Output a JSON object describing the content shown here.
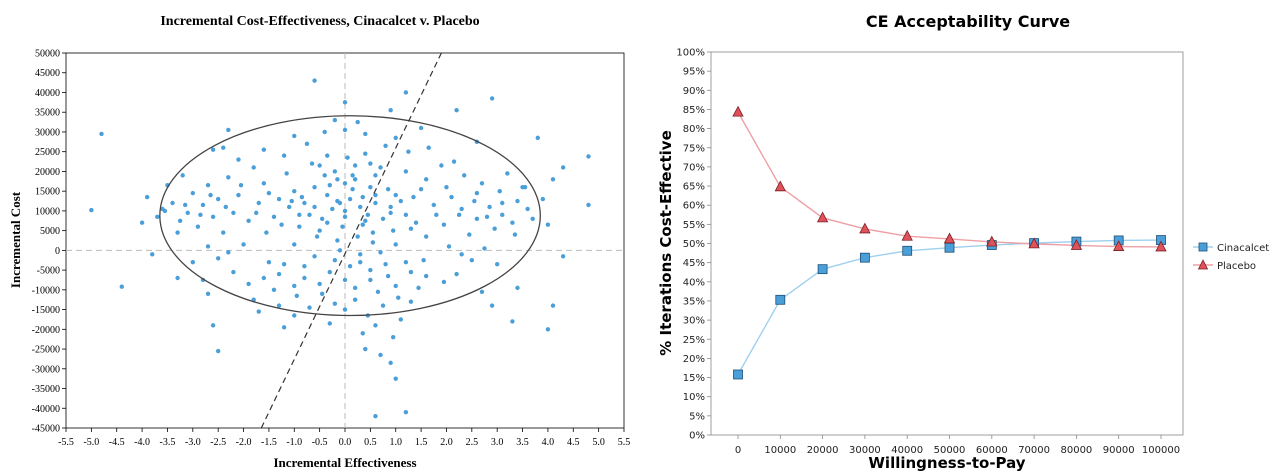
{
  "chart_data": [
    {
      "type": "scatter",
      "title": "Incremental Cost-Effectiveness, Cinacalcet v. Placebo",
      "xlabel": "Incremental Effectiveness",
      "ylabel": "Incremental Cost",
      "xlim": [
        -5.5,
        5.5
      ],
      "ylim": [
        -45000,
        50000
      ],
      "x_ticks": [
        "-5.5",
        "-5.0",
        "-4.5",
        "-4.0",
        "-3.5",
        "-3.0",
        "-2.5",
        "-2.0",
        "-1.5",
        "-1.0",
        "-0.5",
        "0.0",
        "0.5",
        "1.0",
        "1.5",
        "2.0",
        "2.5",
        "3.0",
        "3.5",
        "4.0",
        "4.5",
        "5.0",
        "5.5"
      ],
      "y_ticks": [
        "50000",
        "45000",
        "40000",
        "35000",
        "30000",
        "25000",
        "20000",
        "15000",
        "10000",
        "5000",
        "0",
        "-5000",
        "-10000",
        "-15000",
        "-20000",
        "-25000",
        "-30000",
        "-35000",
        "-40000",
        "-45000"
      ],
      "point_color": "#4a9fd8",
      "ellipse": {
        "center_x": 0.1,
        "center_y": 8800,
        "semi_axis_x": 3.75,
        "semi_axis_y": 25300,
        "color": "#444444"
      },
      "wtp_line": {
        "x1": -1.65,
        "y1": -45000,
        "x2": 1.9,
        "y2": 50000,
        "style": "dashed",
        "color": "#333333"
      },
      "reference_lines": {
        "x": 0,
        "y": 0,
        "style": "dashed",
        "color": "#bbbbbb"
      },
      "points": [
        [
          -5.0,
          10200
        ],
        [
          -4.8,
          29500
        ],
        [
          -4.4,
          -9200
        ],
        [
          -3.8,
          -1000
        ],
        [
          -3.6,
          10500
        ],
        [
          -2.5,
          -25500
        ],
        [
          -2.6,
          -19000
        ],
        [
          -2.3,
          30500
        ],
        [
          -2.4,
          26000
        ],
        [
          -0.6,
          43000
        ],
        [
          0.0,
          37500
        ],
        [
          0.9,
          35500
        ],
        [
          1.2,
          40000
        ],
        [
          2.9,
          38500
        ],
        [
          2.2,
          35500
        ],
        [
          3.8,
          28500
        ],
        [
          4.8,
          23800
        ],
        [
          4.8,
          11500
        ],
        [
          4.3,
          21000
        ],
        [
          4.1,
          18000
        ],
        [
          4.3,
          -1500
        ],
        [
          4.1,
          -14000
        ],
        [
          4.0,
          -20000
        ],
        [
          0.6,
          -42000
        ],
        [
          1.2,
          -41000
        ],
        [
          1.0,
          -32500
        ],
        [
          0.9,
          -28500
        ],
        [
          0.4,
          -25000
        ],
        [
          0.7,
          -26500
        ],
        [
          3.3,
          -18000
        ],
        [
          2.9,
          -14000
        ],
        [
          -1.7,
          -15500
        ],
        [
          -1.2,
          -19500
        ],
        [
          -1.8,
          -12500
        ],
        [
          -2.8,
          -7500
        ],
        [
          3.5,
          16000
        ],
        [
          -0.35,
          14000
        ],
        [
          -0.1,
          12000
        ],
        [
          0.2,
          18000
        ],
        [
          0.5,
          16000
        ],
        [
          -0.6,
          16000
        ],
        [
          0.0,
          10000
        ],
        [
          0.3,
          11000
        ],
        [
          0.6,
          12000
        ],
        [
          -0.25,
          10500
        ],
        [
          0.15,
          15500
        ],
        [
          -0.45,
          8000
        ],
        [
          0.45,
          9000
        ],
        [
          -0.8,
          12000
        ],
        [
          0.9,
          11000
        ],
        [
          -0.05,
          6000
        ],
        [
          0.35,
          6500
        ],
        [
          -0.7,
          9000
        ],
        [
          0.75,
          8000
        ],
        [
          -0.2,
          20000
        ],
        [
          0.2,
          21500
        ],
        [
          0.0,
          17000
        ],
        [
          -0.4,
          19000
        ],
        [
          0.6,
          19000
        ],
        [
          1.0,
          14000
        ],
        [
          -1.0,
          15000
        ],
        [
          -1.1,
          11000
        ],
        [
          1.2,
          9000
        ],
        [
          -0.15,
          2500
        ],
        [
          0.25,
          3500
        ],
        [
          0.55,
          2000
        ],
        [
          -0.55,
          3500
        ],
        [
          0.05,
          23500
        ],
        [
          -0.35,
          24000
        ],
        [
          0.4,
          24500
        ],
        [
          -0.9,
          6000
        ],
        [
          0.95,
          5000
        ],
        [
          -1.3,
          13000
        ],
        [
          1.35,
          13500
        ],
        [
          -1.4,
          8500
        ],
        [
          1.4,
          7000
        ],
        [
          -0.1,
          0
        ],
        [
          0.3,
          -1000
        ],
        [
          0.7,
          -500
        ],
        [
          -0.6,
          -1500
        ],
        [
          1.0,
          1500
        ],
        [
          -1.0,
          1500
        ],
        [
          0.1,
          -4000
        ],
        [
          -0.3,
          -5500
        ],
        [
          0.5,
          -5000
        ],
        [
          0.85,
          -6500
        ],
        [
          -0.8,
          -7000
        ],
        [
          1.2,
          -3000
        ],
        [
          -1.2,
          -3500
        ],
        [
          0.2,
          -9500
        ],
        [
          -0.45,
          -11000
        ],
        [
          0.65,
          -10500
        ],
        [
          1.05,
          -12000
        ],
        [
          -0.95,
          -11500
        ],
        [
          0.0,
          -15000
        ],
        [
          0.45,
          -16500
        ],
        [
          -1.6,
          17000
        ],
        [
          1.6,
          18000
        ],
        [
          -1.7,
          12000
        ],
        [
          1.75,
          11500
        ],
        [
          -1.55,
          4500
        ],
        [
          1.6,
          3500
        ],
        [
          -1.8,
          21000
        ],
        [
          1.9,
          21500
        ],
        [
          -1.5,
          -3000
        ],
        [
          1.55,
          -2500
        ],
        [
          -1.9,
          7500
        ],
        [
          1.95,
          6500
        ],
        [
          -2.1,
          14000
        ],
        [
          2.1,
          13500
        ],
        [
          -2.2,
          9500
        ],
        [
          2.25,
          9000
        ],
        [
          -2.0,
          1500
        ],
        [
          2.05,
          1000
        ],
        [
          -2.3,
          18500
        ],
        [
          2.35,
          19000
        ],
        [
          -2.4,
          4500
        ],
        [
          2.45,
          4000
        ],
        [
          -2.5,
          13000
        ],
        [
          2.55,
          12500
        ],
        [
          -2.6,
          8500
        ],
        [
          2.6,
          8000
        ],
        [
          -2.7,
          16500
        ],
        [
          2.7,
          17000
        ],
        [
          -2.8,
          11500
        ],
        [
          2.85,
          11000
        ],
        [
          -2.9,
          6000
        ],
        [
          2.95,
          5500
        ],
        [
          -3.0,
          14500
        ],
        [
          3.05,
          15000
        ],
        [
          -3.1,
          9500
        ],
        [
          3.1,
          9000
        ],
        [
          -3.2,
          19000
        ],
        [
          3.2,
          19500
        ],
        [
          -3.3,
          4500
        ],
        [
          3.35,
          4000
        ],
        [
          -3.4,
          12000
        ],
        [
          3.4,
          12500
        ],
        [
          -3.5,
          16500
        ],
        [
          3.55,
          16000
        ],
        [
          -3.7,
          8500
        ],
        [
          3.7,
          8000
        ],
        [
          -3.9,
          13500
        ],
        [
          3.9,
          13000
        ],
        [
          -4.0,
          7000
        ],
        [
          4.0,
          6500
        ],
        [
          -2.2,
          -5500
        ],
        [
          2.2,
          -6000
        ],
        [
          -2.5,
          -2000
        ],
        [
          2.5,
          -2500
        ],
        [
          -1.9,
          -8500
        ],
        [
          1.95,
          -8000
        ],
        [
          -1.4,
          -10000
        ],
        [
          1.45,
          -9500
        ],
        [
          -2.7,
          1000
        ],
        [
          2.75,
          500
        ],
        [
          -3.0,
          -3000
        ],
        [
          3.0,
          -3500
        ],
        [
          -1.2,
          24000
        ],
        [
          1.25,
          25000
        ],
        [
          -0.75,
          27000
        ],
        [
          0.8,
          26500
        ],
        [
          -1.6,
          25500
        ],
        [
          1.65,
          26000
        ],
        [
          -2.1,
          23000
        ],
        [
          2.15,
          22500
        ],
        [
          0.0,
          30500
        ],
        [
          -0.4,
          30000
        ],
        [
          0.4,
          29500
        ],
        [
          -1.0,
          29000
        ],
        [
          1.0,
          28500
        ],
        [
          2.6,
          27500
        ],
        [
          -2.6,
          25500
        ],
        [
          -0.2,
          33000
        ],
        [
          0.25,
          32500
        ],
        [
          1.5,
          31000
        ],
        [
          -0.65,
          22000
        ],
        [
          0.7,
          21000
        ],
        [
          -1.15,
          19500
        ],
        [
          1.2,
          20000
        ],
        [
          -0.3,
          16500
        ],
        [
          0.35,
          13500
        ],
        [
          -0.85,
          13500
        ],
        [
          0.85,
          15500
        ],
        [
          -1.25,
          6500
        ],
        [
          1.3,
          5500
        ],
        [
          -0.5,
          5000
        ],
        [
          0.55,
          4500
        ],
        [
          0.0,
          8500
        ],
        [
          -0.15,
          12500
        ],
        [
          0.1,
          13000
        ],
        [
          0.6,
          14000
        ],
        [
          -0.6,
          11000
        ],
        [
          0.4,
          7500
        ],
        [
          -0.35,
          7000
        ],
        [
          0.9,
          9500
        ],
        [
          -0.9,
          9000
        ],
        [
          1.1,
          12500
        ],
        [
          -1.05,
          12500
        ],
        [
          0.15,
          19000
        ],
        [
          -0.15,
          18000
        ],
        [
          0.5,
          22000
        ],
        [
          -0.5,
          21500
        ],
        [
          1.5,
          15500
        ],
        [
          -1.5,
          14500
        ],
        [
          1.8,
          9000
        ],
        [
          -1.75,
          9500
        ],
        [
          2.0,
          16000
        ],
        [
          -2.05,
          16500
        ],
        [
          2.3,
          10500
        ],
        [
          -2.35,
          11000
        ],
        [
          2.6,
          14500
        ],
        [
          -2.65,
          14000
        ],
        [
          2.8,
          8500
        ],
        [
          -2.85,
          9000
        ],
        [
          3.1,
          12000
        ],
        [
          -3.15,
          11500
        ],
        [
          3.3,
          7000
        ],
        [
          -3.25,
          7500
        ],
        [
          3.6,
          10500
        ],
        [
          -3.55,
          10000
        ],
        [
          0.3,
          -3000
        ],
        [
          -0.2,
          -2500
        ],
        [
          0.8,
          -3500
        ],
        [
          -0.8,
          -4000
        ],
        [
          1.3,
          -5500
        ],
        [
          -1.3,
          -6000
        ],
        [
          1.6,
          -6500
        ],
        [
          -1.6,
          -7000
        ],
        [
          2.3,
          -1000
        ],
        [
          -2.3,
          -500
        ],
        [
          0.0,
          -7500
        ],
        [
          0.5,
          -7500
        ],
        [
          -0.5,
          -8500
        ],
        [
          1.0,
          -9000
        ],
        [
          -1.0,
          -9000
        ],
        [
          0.2,
          -12500
        ],
        [
          -0.2,
          -13500
        ],
        [
          0.75,
          -14000
        ],
        [
          -0.7,
          -14500
        ],
        [
          1.3,
          -13000
        ],
        [
          -1.3,
          -14000
        ],
        [
          2.7,
          -10500
        ],
        [
          -2.7,
          -11000
        ],
        [
          3.4,
          -9500
        ],
        [
          -3.3,
          -7000
        ],
        [
          0.6,
          -19000
        ],
        [
          -0.3,
          -18500
        ],
        [
          1.1,
          -17500
        ],
        [
          -1.0,
          -16500
        ],
        [
          0.35,
          -21000
        ],
        [
          0.95,
          -22000
        ]
      ]
    },
    {
      "type": "line",
      "title": "CE Acceptability Curve",
      "xlabel": "Willingness-to-Pay",
      "ylabel": "% Iterations Cost-Effective",
      "categories": [
        "0",
        "10000",
        "20000",
        "30000",
        "40000",
        "50000",
        "60000",
        "70000",
        "80000",
        "90000",
        "100000"
      ],
      "y_ticks": [
        "100%",
        "95%",
        "90%",
        "85%",
        "80%",
        "75%",
        "70%",
        "65%",
        "60%",
        "55%",
        "50%",
        "45%",
        "40%",
        "35%",
        "30%",
        "25%",
        "20%",
        "15%",
        "10%",
        "5%",
        "0%"
      ],
      "ylim": [
        0,
        100
      ],
      "legend_position": "right",
      "series": [
        {
          "name": "Cinacalcet",
          "marker": "square",
          "color": "#4a9fd8",
          "line_color": "#9fd0ee",
          "values": [
            15.8,
            35.3,
            43.3,
            46.3,
            48.1,
            48.9,
            49.6,
            50.1,
            50.5,
            50.8,
            50.9
          ]
        },
        {
          "name": "Placebo",
          "marker": "triangle",
          "color": "#e0525a",
          "line_color": "#ee9fa5",
          "values": [
            84.3,
            64.8,
            56.7,
            53.8,
            51.9,
            51.2,
            50.4,
            49.9,
            49.5,
            49.2,
            49.1
          ]
        }
      ]
    }
  ]
}
